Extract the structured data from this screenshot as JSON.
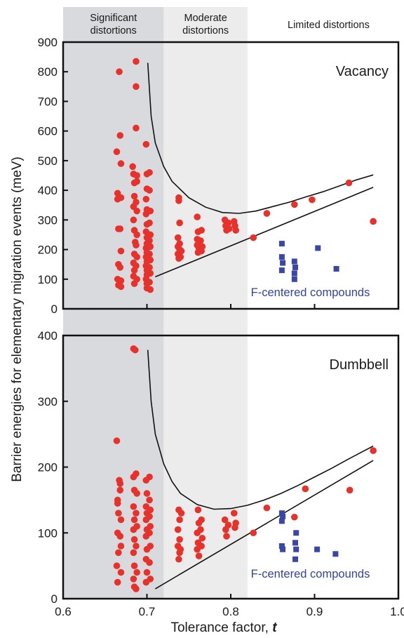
{
  "chart_data": [
    {
      "type": "scatter",
      "title": "Vacancy",
      "xlim": [
        0.6,
        1.0
      ],
      "ylim": [
        0,
        900
      ],
      "yticks": [
        "0",
        "100",
        "200",
        "300",
        "400",
        "500",
        "600",
        "700",
        "800",
        "900"
      ],
      "xticks": [
        "0.6",
        "0.7",
        "0.8",
        "0.9",
        "1.0"
      ],
      "regions": [
        {
          "label": "Significant distortions",
          "lines": [
            "Significant",
            "distortions"
          ],
          "x_range": [
            0.6,
            0.72
          ],
          "color": "#d9dadd"
        },
        {
          "label": "Moderate distortions",
          "lines": [
            "Moderate",
            "distortions"
          ],
          "x_range": [
            0.72,
            0.82
          ],
          "color": "#ececed"
        },
        {
          "label": "Limited distortions",
          "lines": [
            "Limited distortions"
          ],
          "x_range": [
            0.82,
            1.0
          ],
          "color": "#ffffff"
        }
      ],
      "annotation": "F-centered compounds",
      "series": [
        {
          "marker": "circle",
          "color": "#e8312b",
          "points": [
            [
              0.664,
              530
            ],
            [
              0.665,
              390
            ],
            [
              0.665,
              370
            ],
            [
              0.666,
              270
            ],
            [
              0.666,
              150
            ],
            [
              0.665,
              100
            ],
            [
              0.666,
              80
            ],
            [
              0.667,
              800
            ],
            [
              0.668,
              585
            ],
            [
              0.669,
              490
            ],
            [
              0.669,
              375
            ],
            [
              0.668,
              270
            ],
            [
              0.669,
              195
            ],
            [
              0.668,
              140
            ],
            [
              0.669,
              95
            ],
            [
              0.669,
              75
            ],
            [
              0.683,
              480
            ],
            [
              0.684,
              455
            ],
            [
              0.685,
              425
            ],
            [
              0.685,
              380
            ],
            [
              0.684,
              345
            ],
            [
              0.684,
              300
            ],
            [
              0.685,
              265
            ],
            [
              0.686,
              225
            ],
            [
              0.685,
              185
            ],
            [
              0.684,
              155
            ],
            [
              0.685,
              130
            ],
            [
              0.684,
              110
            ],
            [
              0.685,
              85
            ],
            [
              0.687,
              835
            ],
            [
              0.687,
              750
            ],
            [
              0.687,
              610
            ],
            [
              0.688,
              450
            ],
            [
              0.688,
              430
            ],
            [
              0.687,
              360
            ],
            [
              0.688,
              330
            ],
            [
              0.688,
              250
            ],
            [
              0.687,
              215
            ],
            [
              0.688,
              175
            ],
            [
              0.687,
              145
            ],
            [
              0.688,
              100
            ],
            [
              0.699,
              555
            ],
            [
              0.7,
              455
            ],
            [
              0.7,
              405
            ],
            [
              0.699,
              370
            ],
            [
              0.7,
              335
            ],
            [
              0.699,
              320
            ],
            [
              0.7,
              285
            ],
            [
              0.699,
              260
            ],
            [
              0.7,
              240
            ],
            [
              0.7,
              220
            ],
            [
              0.699,
              205
            ],
            [
              0.7,
              190
            ],
            [
              0.699,
              175
            ],
            [
              0.7,
              160
            ],
            [
              0.699,
              145
            ],
            [
              0.7,
              130
            ],
            [
              0.7,
              115
            ],
            [
              0.699,
              100
            ],
            [
              0.7,
              85
            ],
            [
              0.7,
              70
            ],
            [
              0.703,
              460
            ],
            [
              0.703,
              400
            ],
            [
              0.704,
              330
            ],
            [
              0.703,
              290
            ],
            [
              0.704,
              250
            ],
            [
              0.703,
              230
            ],
            [
              0.704,
              210
            ],
            [
              0.703,
              185
            ],
            [
              0.704,
              165
            ],
            [
              0.703,
              140
            ],
            [
              0.704,
              120
            ],
            [
              0.703,
              90
            ],
            [
              0.704,
              65
            ],
            [
              0.738,
              375
            ],
            [
              0.738,
              365
            ],
            [
              0.739,
              290
            ],
            [
              0.737,
              240
            ],
            [
              0.739,
              220
            ],
            [
              0.737,
              210
            ],
            [
              0.739,
              200
            ],
            [
              0.737,
              185
            ],
            [
              0.738,
              170
            ],
            [
              0.741,
              195
            ],
            [
              0.74,
              175
            ],
            [
              0.76,
              310
            ],
            [
              0.761,
              260
            ],
            [
              0.76,
              235
            ],
            [
              0.762,
              225
            ],
            [
              0.76,
              215
            ],
            [
              0.762,
              205
            ],
            [
              0.761,
              190
            ],
            [
              0.765,
              265
            ],
            [
              0.764,
              230
            ],
            [
              0.766,
              210
            ],
            [
              0.765,
              195
            ],
            [
              0.793,
              300
            ],
            [
              0.794,
              280
            ],
            [
              0.795,
              265
            ],
            [
              0.797,
              290
            ],
            [
              0.798,
              270
            ],
            [
              0.804,
              295
            ],
            [
              0.805,
              280
            ],
            [
              0.806,
              265
            ],
            [
              0.827,
              240
            ],
            [
              0.843,
              322
            ],
            [
              0.876,
              352
            ],
            [
              0.897,
              368
            ],
            [
              0.941,
              425
            ],
            [
              0.97,
              295
            ]
          ]
        },
        {
          "marker": "square",
          "color": "#3a47a7",
          "points": [
            [
              0.861,
              220
            ],
            [
              0.861,
              175
            ],
            [
              0.862,
              155
            ],
            [
              0.861,
              130
            ],
            [
              0.876,
              160
            ],
            [
              0.877,
              140
            ],
            [
              0.876,
              120
            ],
            [
              0.876,
              100
            ],
            [
              0.904,
              205
            ],
            [
              0.926,
              135
            ]
          ]
        }
      ],
      "curves": [
        {
          "points": [
            [
              0.701,
              830
            ],
            [
              0.705,
              650
            ],
            [
              0.71,
              560
            ],
            [
              0.72,
              480
            ],
            [
              0.73,
              430
            ],
            [
              0.75,
              375
            ],
            [
              0.77,
              343
            ],
            [
              0.79,
              325
            ],
            [
              0.81,
              322
            ],
            [
              0.83,
              330
            ],
            [
              0.85,
              345
            ],
            [
              0.87,
              360
            ],
            [
              0.89,
              378
            ],
            [
              0.91,
              395
            ],
            [
              0.93,
              415
            ],
            [
              0.95,
              435
            ],
            [
              0.97,
              452
            ]
          ]
        },
        {
          "points": [
            [
              0.71,
              108
            ],
            [
              0.97,
              410
            ]
          ]
        }
      ]
    },
    {
      "type": "scatter",
      "title": "Dumbbell",
      "xlabel": "Tolerance factor, t",
      "xlim": [
        0.6,
        1.0
      ],
      "ylim": [
        0,
        400
      ],
      "yticks": [
        "0",
        "100",
        "200",
        "300",
        "400"
      ],
      "xticks": [
        "0.6",
        "0.7",
        "0.8",
        "0.9",
        "1.0"
      ],
      "annotation": "F-centered compounds",
      "series": [
        {
          "marker": "circle",
          "color": "#e8312b",
          "points": [
            [
              0.664,
              240
            ],
            [
              0.665,
              150
            ],
            [
              0.665,
              145
            ],
            [
              0.666,
              130
            ],
            [
              0.665,
              100
            ],
            [
              0.666,
              70
            ],
            [
              0.664,
              50
            ],
            [
              0.665,
              25
            ],
            [
              0.667,
              180
            ],
            [
              0.668,
              175
            ],
            [
              0.668,
              165
            ],
            [
              0.669,
              120
            ],
            [
              0.668,
              95
            ],
            [
              0.669,
              80
            ],
            [
              0.669,
              40
            ],
            [
              0.684,
              380
            ],
            [
              0.686,
              378
            ],
            [
              0.684,
              185
            ],
            [
              0.685,
              165
            ],
            [
              0.684,
              140
            ],
            [
              0.685,
              120
            ],
            [
              0.684,
              105
            ],
            [
              0.685,
              90
            ],
            [
              0.684,
              70
            ],
            [
              0.685,
              50
            ],
            [
              0.684,
              30
            ],
            [
              0.685,
              18
            ],
            [
              0.687,
              190
            ],
            [
              0.688,
              160
            ],
            [
              0.687,
              130
            ],
            [
              0.688,
              110
            ],
            [
              0.687,
              80
            ],
            [
              0.688,
              40
            ],
            [
              0.687,
              15
            ],
            [
              0.699,
              180
            ],
            [
              0.7,
              160
            ],
            [
              0.699,
              140
            ],
            [
              0.7,
              130
            ],
            [
              0.699,
              120
            ],
            [
              0.7,
              105
            ],
            [
              0.699,
              95
            ],
            [
              0.7,
              75
            ],
            [
              0.699,
              60
            ],
            [
              0.7,
              40
            ],
            [
              0.699,
              25
            ],
            [
              0.703,
              185
            ],
            [
              0.703,
              150
            ],
            [
              0.704,
              135
            ],
            [
              0.703,
              125
            ],
            [
              0.704,
              110
            ],
            [
              0.703,
              100
            ],
            [
              0.704,
              80
            ],
            [
              0.703,
              55
            ],
            [
              0.704,
              30
            ],
            [
              0.738,
              135
            ],
            [
              0.739,
              120
            ],
            [
              0.737,
              105
            ],
            [
              0.739,
              90
            ],
            [
              0.737,
              80
            ],
            [
              0.739,
              70
            ],
            [
              0.738,
              60
            ],
            [
              0.741,
              130
            ],
            [
              0.74,
              75
            ],
            [
              0.761,
              135
            ],
            [
              0.76,
              100
            ],
            [
              0.762,
              115
            ],
            [
              0.761,
              85
            ],
            [
              0.76,
              75
            ],
            [
              0.762,
              65
            ],
            [
              0.765,
              120
            ],
            [
              0.764,
              105
            ],
            [
              0.766,
              92
            ],
            [
              0.765,
              80
            ],
            [
              0.793,
              120
            ],
            [
              0.794,
              105
            ],
            [
              0.795,
              95
            ],
            [
              0.797,
              112
            ],
            [
              0.804,
              130
            ],
            [
              0.806,
              115
            ],
            [
              0.805,
              108
            ],
            [
              0.827,
              100
            ],
            [
              0.843,
              138
            ],
            [
              0.876,
              124
            ],
            [
              0.889,
              167
            ],
            [
              0.942,
              165
            ],
            [
              0.97,
              225
            ]
          ]
        },
        {
          "marker": "square",
          "color": "#3a47a7",
          "points": [
            [
              0.861,
              130
            ],
            [
              0.862,
              125
            ],
            [
              0.861,
              118
            ],
            [
              0.861,
              80
            ],
            [
              0.862,
              75
            ],
            [
              0.878,
              100
            ],
            [
              0.877,
              85
            ],
            [
              0.878,
              75
            ],
            [
              0.877,
              60
            ],
            [
              0.903,
              75
            ],
            [
              0.925,
              68
            ]
          ]
        }
      ],
      "curves": [
        {
          "points": [
            [
              0.701,
              378
            ],
            [
              0.705,
              300
            ],
            [
              0.71,
              250
            ],
            [
              0.72,
              205
            ],
            [
              0.73,
              178
            ],
            [
              0.74,
              160
            ],
            [
              0.76,
              143
            ],
            [
              0.78,
              136
            ],
            [
              0.8,
              137
            ],
            [
              0.82,
              142
            ],
            [
              0.84,
              150
            ],
            [
              0.86,
              160
            ],
            [
              0.88,
              172
            ],
            [
              0.9,
              185
            ],
            [
              0.92,
              198
            ],
            [
              0.94,
              212
            ],
            [
              0.97,
              232
            ]
          ]
        },
        {
          "points": [
            [
              0.71,
              15
            ],
            [
              0.97,
              210
            ]
          ]
        }
      ]
    }
  ],
  "shared_ylabel": "Barrier energies for elementary migration events (meV)",
  "shared_xlabel_main": "Tolerance factor, ",
  "shared_xlabel_var": "t"
}
